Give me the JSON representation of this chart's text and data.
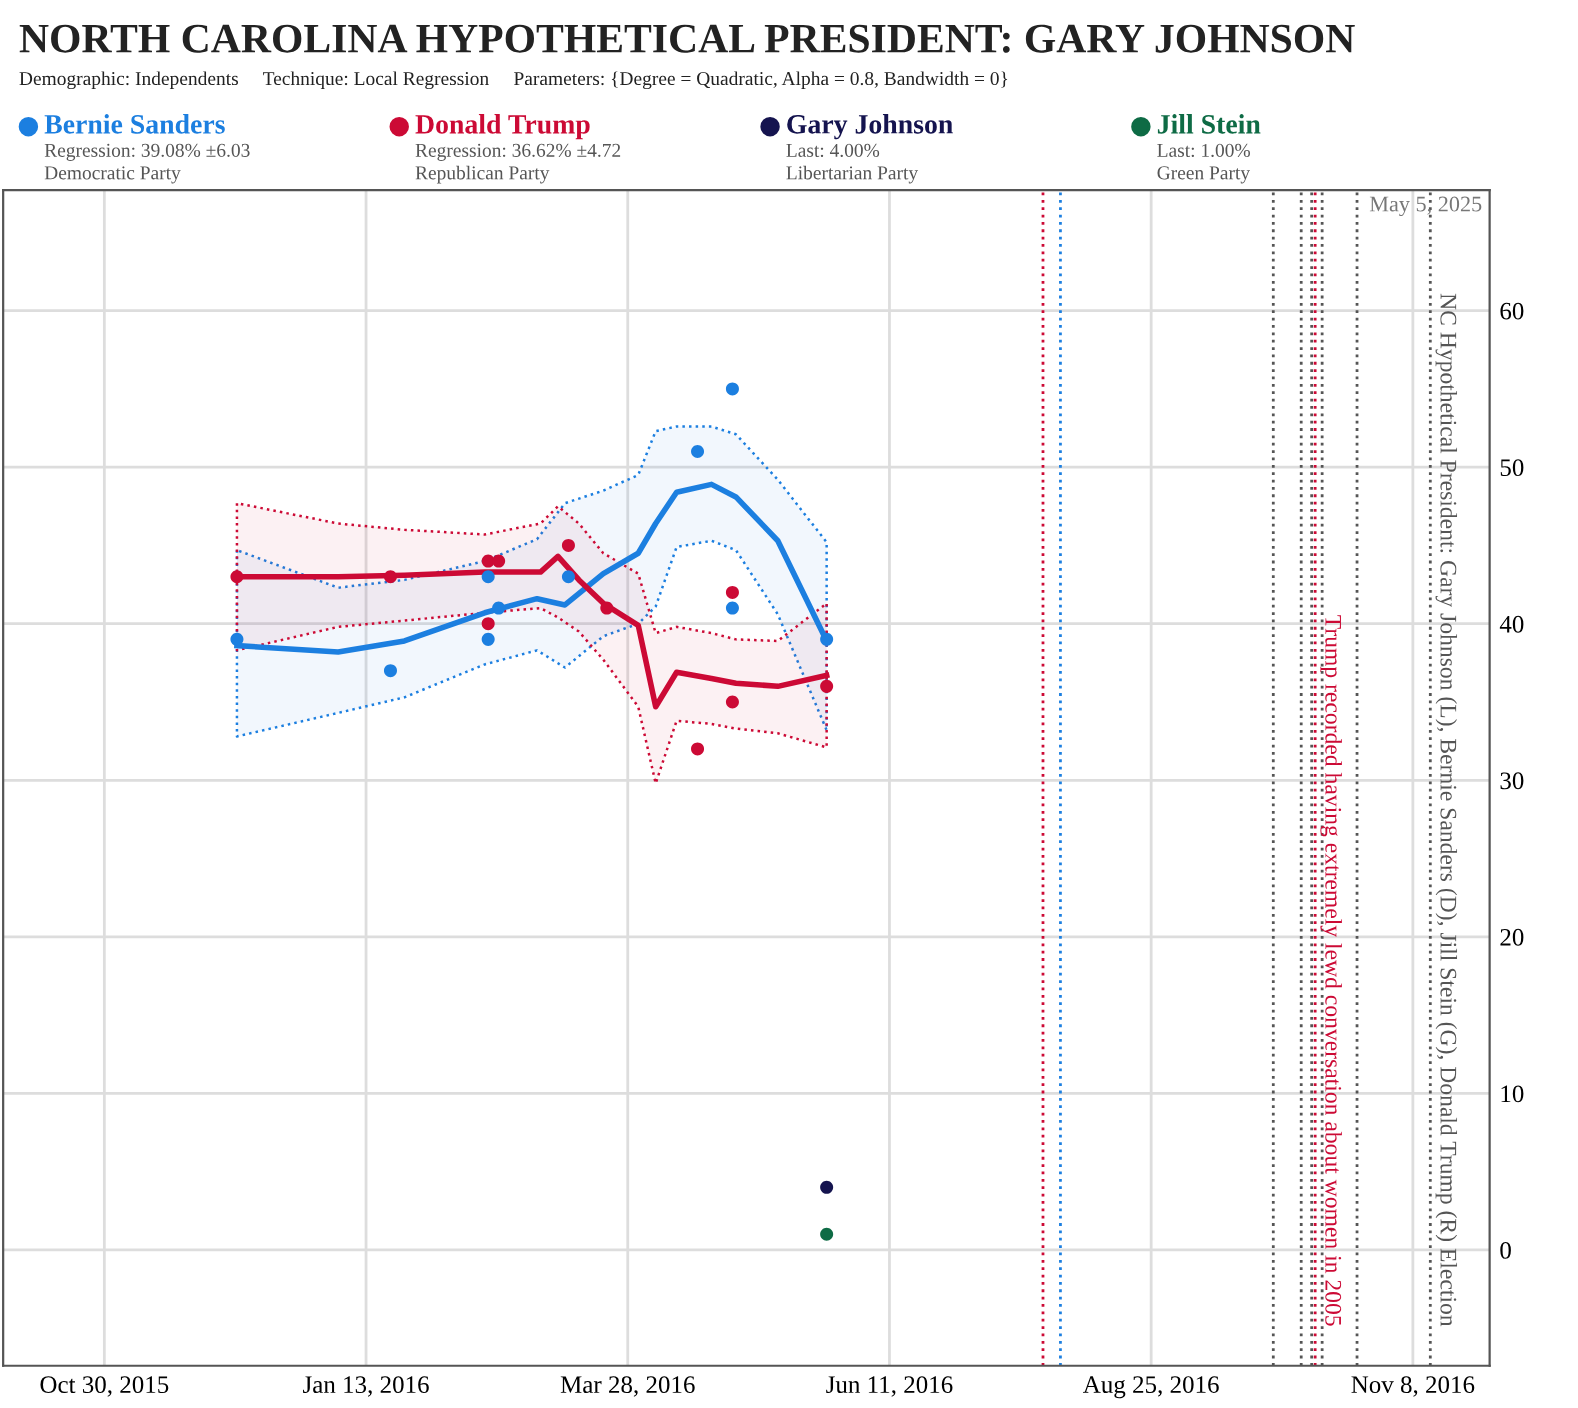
{
  "chart_data": {
    "type": "scatter",
    "title": "NORTH CAROLINA HYPOTHETICAL PRESIDENT: GARY JOHNSON",
    "subtitle": "Demographic: Independents     Technique: Local Regression     Parameters: {Degree = Quadratic, Alpha = 0.8, Bandwidth = 0}",
    "annotations": [
      "Regression: 39.08% ±6.03",
      "Democratic Party",
      "Regression: 36.62% ±4.72",
      "Republican Party",
      "Last: 4.00%",
      "Libertarian Party",
      "Last: 1.00%",
      "Green Party",
      "May 5, 2025"
    ],
    "series": [
      {
        "name": "Bernie Sanders",
        "color": "#1c7fe0",
        "x": [
          "2015-12-07",
          "2016-01-20",
          "2016-02-17",
          "2016-02-17",
          "2016-02-20",
          "2016-03-11",
          "2016-04-17",
          "2016-04-27",
          "2016-04-27",
          "2016-05-24"
        ],
        "values": [
          39,
          37,
          43,
          39,
          41,
          43,
          51,
          55,
          41,
          39
        ]
      },
      {
        "type": "line",
        "marker": "none",
        "color": "#1c7fe0",
        "x": [
          "2015-12-07",
          "2016-01-05",
          "2016-01-24",
          "2016-02-16",
          "2016-03-02",
          "2016-03-10",
          "2016-03-21",
          "2016-03-31",
          "2016-04-05",
          "2016-04-11",
          "2016-04-21",
          "2016-04-28",
          "2016-05-10",
          "2016-05-24"
        ],
        "values": [
          38.6,
          38.2,
          38.9,
          40.7,
          41.6,
          41.2,
          43.2,
          44.5,
          46.4,
          48.4,
          48.9,
          48.1,
          45.3,
          38.9
        ],
        "upper": [
          44.7,
          42.3,
          42.8,
          44.0,
          45.4,
          47.7,
          48.5,
          49.5,
          52.3,
          52.6,
          52.6,
          52.1,
          49.2,
          45.2
        ],
        "lower": [
          32.8,
          34.3,
          35.3,
          37.4,
          38.3,
          37.2,
          39.2,
          40.0,
          41.1,
          44.9,
          45.3,
          44.7,
          40.6,
          33.2
        ]
      },
      {
        "name": "Donald Trump",
        "color": "#cc0a35",
        "x": [
          "2015-12-07",
          "2016-01-20",
          "2016-02-17",
          "2016-02-20",
          "2016-02-17",
          "2016-03-11",
          "2016-03-22",
          "2016-04-17",
          "2016-04-27",
          "2016-04-27",
          "2016-05-24"
        ],
        "values": [
          43,
          43,
          44,
          44,
          40,
          45,
          41,
          32,
          42,
          35,
          36
        ]
      },
      {
        "type": "line",
        "marker": "none",
        "color": "#cc0a35",
        "x": [
          "2015-12-07",
          "2016-01-05",
          "2016-01-24",
          "2016-02-16",
          "2016-03-03",
          "2016-03-08",
          "2016-03-14",
          "2016-03-21",
          "2016-03-31",
          "2016-04-05",
          "2016-04-11",
          "2016-04-21",
          "2016-04-28",
          "2016-05-10",
          "2016-05-24"
        ],
        "values": [
          43.0,
          43.0,
          43.1,
          43.3,
          43.3,
          44.3,
          42.8,
          41.3,
          39.9,
          34.7,
          36.9,
          36.5,
          36.2,
          36.0,
          36.7
        ],
        "upper": [
          47.7,
          46.4,
          46.0,
          45.7,
          46.4,
          47.5,
          46.4,
          44.5,
          43.2,
          39.4,
          39.8,
          39.4,
          39.0,
          38.9,
          41.3
        ],
        "lower": [
          38.3,
          39.8,
          40.2,
          40.7,
          41.0,
          40.4,
          39.5,
          37.7,
          34.7,
          29.8,
          33.8,
          33.6,
          33.3,
          33.0,
          32.1
        ]
      },
      {
        "name": "Gary Johnson",
        "color": "#15144f",
        "x": [
          "2016-05-24"
        ],
        "values": [
          4
        ]
      },
      {
        "name": "Jill Stein",
        "color": "#0e6b45",
        "x": [
          "2016-05-24"
        ],
        "values": [
          1
        ]
      }
    ],
    "ref_lines": [
      {
        "axis": "x",
        "value": "2016-07-25",
        "color": "#cc0a35",
        "line_style": "dotted"
      },
      {
        "axis": "x",
        "value": "2016-07-30",
        "color": "#1c7fe0",
        "line_style": "dotted"
      },
      {
        "axis": "x",
        "value": "2016-09-29",
        "color": "#555555",
        "line_style": "dotted"
      },
      {
        "axis": "x",
        "value": "2016-10-07",
        "color": "#555555",
        "line_style": "dotted"
      },
      {
        "axis": "x",
        "value": "2016-10-10",
        "color": "#555555",
        "line_style": "dotted"
      },
      {
        "axis": "x",
        "value": "2016-10-11",
        "color": "#cc0a35",
        "line_style": "dotted",
        "label": "Trump recorded having extremely lewd conversation about women in 2005"
      },
      {
        "axis": "x",
        "value": "2016-10-13",
        "color": "#555555",
        "line_style": "dotted"
      },
      {
        "axis": "x",
        "value": "2016-10-23",
        "color": "#555555",
        "line_style": "dotted"
      },
      {
        "axis": "x",
        "value": "2016-11-13",
        "color": "#555555",
        "line_style": "dotted",
        "label": "NC Hypothetical President: Gary Johnson (L), Bernie Sanders (D), Jill Stein (G), Donald Trump (R) Election"
      }
    ],
    "xlim": [
      "2015-10-01",
      "2016-11-30"
    ],
    "xticks": [
      {
        "value": "2015-10-30",
        "label": "Oct 30, 2015"
      },
      {
        "value": "2016-01-13",
        "label": "Jan 13, 2016"
      },
      {
        "value": "2016-03-28",
        "label": "Mar 28, 2016"
      },
      {
        "value": "2016-06-11",
        "label": "Jun 11, 2016"
      },
      {
        "value": "2016-08-25",
        "label": "Aug 25, 2016"
      },
      {
        "value": "2016-11-08",
        "label": "Nov 8, 2016"
      }
    ],
    "ylim": [
      -7.4,
      67.7
    ],
    "yticks": [
      0,
      10,
      20,
      30,
      40,
      50,
      60
    ],
    "grid": true,
    "legend": "top",
    "marker": "circle"
  }
}
